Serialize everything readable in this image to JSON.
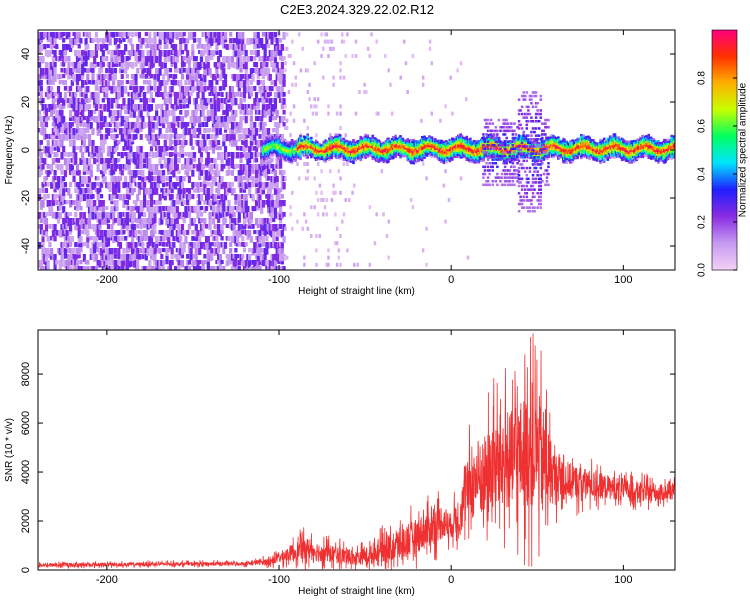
{
  "title": "C2E3.2024.329.22.02.R12",
  "chart_data": [
    {
      "type": "heatmap",
      "xlabel": "Height of straight line (km)",
      "ylabel": "Frequency (Hz)",
      "xlim": [
        -240,
        130
      ],
      "ylim": [
        -50,
        50
      ],
      "x_ticks": [
        -200,
        -100,
        0,
        100
      ],
      "y_ticks": [
        -40,
        -20,
        0,
        20,
        40
      ],
      "colorbar": {
        "label": "Normalized spectral amplitude",
        "range": [
          0,
          1
        ],
        "ticks": [
          0.0,
          0.2,
          0.4,
          0.6,
          0.8
        ],
        "colormap": [
          "#f2d0f5",
          "#c59af0",
          "#8a2be2",
          "#2020ff",
          "#00e5ff",
          "#00ff60",
          "#c8ff00",
          "#ffb000",
          "#ff3000",
          "#ff0080"
        ]
      },
      "regions": [
        {
          "x_range": [
            -240,
            -97
          ],
          "freq_range": [
            -50,
            50
          ],
          "amplitude": 0.1
        },
        {
          "x_range": [
            -97,
            -60
          ],
          "freq_range": [
            -50,
            50
          ],
          "amplitude": 0.03
        },
        {
          "x_range": [
            -110,
            130
          ],
          "freq_center": 1,
          "freq_halfwidth": 3,
          "amplitude": 0.6
        },
        {
          "x_range": [
            20,
            55
          ],
          "freq_range": [
            -25,
            25
          ],
          "amplitude": 0.3
        }
      ]
    },
    {
      "type": "line",
      "xlabel": "Height of straight line (km)",
      "ylabel": "SNR (10 * v/v)",
      "xlim": [
        -240,
        130
      ],
      "ylim": [
        0,
        9800
      ],
      "x_ticks": [
        -200,
        -100,
        0,
        100
      ],
      "y_ticks": [
        0,
        2000,
        4000,
        6000,
        8000
      ],
      "color": "#f03030",
      "series": [
        {
          "x": [
            -240,
            -200,
            -160,
            -120,
            -105,
            -95,
            -85,
            -75,
            -65,
            -55,
            -45,
            -38,
            -32,
            -25,
            -20,
            -15,
            -10,
            -5,
            0,
            5,
            10,
            15,
            20,
            25,
            30,
            35,
            40,
            45,
            50,
            55,
            60,
            70,
            80,
            90,
            100,
            110,
            120,
            130
          ],
          "y": [
            200,
            220,
            250,
            260,
            350,
            650,
            900,
            700,
            600,
            500,
            650,
            900,
            1000,
            1200,
            1400,
            1600,
            1800,
            2000,
            1800,
            2300,
            3300,
            3700,
            3800,
            4300,
            4500,
            4400,
            4700,
            4800,
            4900,
            4300,
            3800,
            3600,
            3500,
            3400,
            3300,
            3200,
            3150,
            3200
          ],
          "spread": [
            150,
            150,
            150,
            150,
            300,
            600,
            900,
            800,
            700,
            600,
            800,
            1100,
            1300,
            1400,
            1400,
            1500,
            1500,
            1500,
            1000,
            1700,
            2600,
            3000,
            3500,
            3800,
            4000,
            4200,
            4500,
            4800,
            5000,
            4000,
            2000,
            1500,
            1200,
            1000,
            900,
            800,
            700,
            600
          ]
        }
      ]
    }
  ]
}
